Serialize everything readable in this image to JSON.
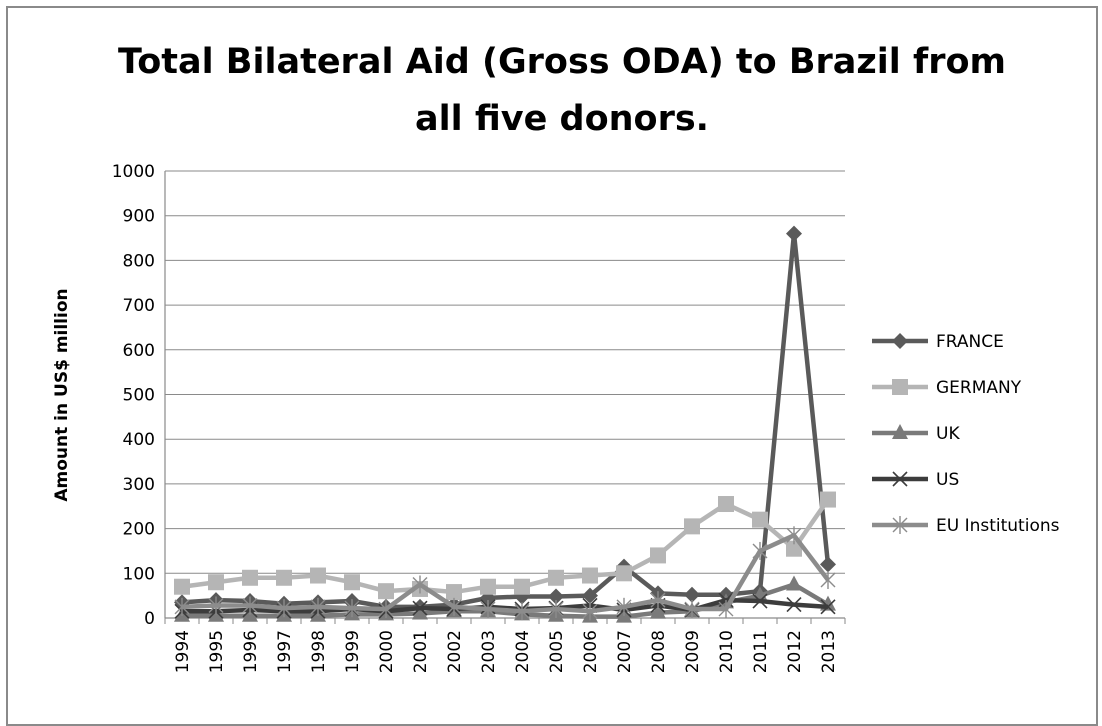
{
  "chart_data": {
    "type": "line",
    "title_lines": [
      "Total Bilateral Aid (Gross ODA) to Brazil from",
      "all five donors."
    ],
    "xlabel": "",
    "ylabel": "Amount in US$ million",
    "ylim": [
      0,
      1000
    ],
    "yticks": [
      0,
      100,
      200,
      300,
      400,
      500,
      600,
      700,
      800,
      900,
      1000
    ],
    "categories": [
      "1994",
      "1995",
      "1996",
      "1997",
      "1998",
      "1999",
      "2000",
      "2001",
      "2002",
      "2003",
      "2004",
      "2005",
      "2006",
      "2007",
      "2008",
      "2009",
      "2010",
      "2011",
      "2012",
      "2013"
    ],
    "grid": "horizontal",
    "legend_position": "right",
    "series": [
      {
        "name": "FRANCE",
        "marker": "diamond",
        "color": "#5a5a5a",
        "values": [
          35,
          40,
          38,
          32,
          35,
          38,
          25,
          25,
          30,
          45,
          48,
          48,
          50,
          115,
          55,
          52,
          52,
          60,
          860,
          120
        ]
      },
      {
        "name": "GERMANY",
        "marker": "square",
        "color": "#b5b5b5",
        "values": [
          70,
          80,
          90,
          90,
          95,
          80,
          60,
          65,
          58,
          70,
          70,
          90,
          95,
          100,
          140,
          205,
          255,
          220,
          155,
          265
        ]
      },
      {
        "name": "UK",
        "marker": "triangle",
        "color": "#7a7a7a",
        "values": [
          5,
          5,
          5,
          5,
          5,
          8,
          8,
          10,
          15,
          15,
          8,
          5,
          3,
          3,
          12,
          15,
          35,
          50,
          75,
          30
        ]
      },
      {
        "name": "US",
        "marker": "x",
        "color": "#3c3c3c",
        "values": [
          15,
          15,
          18,
          15,
          15,
          20,
          15,
          22,
          20,
          25,
          20,
          22,
          28,
          18,
          28,
          18,
          40,
          38,
          30,
          25
        ]
      },
      {
        "name": "EU Institutions",
        "marker": "star",
        "color": "#8c8c8c",
        "values": [
          25,
          28,
          28,
          22,
          25,
          22,
          20,
          75,
          25,
          20,
          15,
          20,
          15,
          25,
          40,
          20,
          20,
          150,
          185,
          85
        ]
      }
    ]
  }
}
